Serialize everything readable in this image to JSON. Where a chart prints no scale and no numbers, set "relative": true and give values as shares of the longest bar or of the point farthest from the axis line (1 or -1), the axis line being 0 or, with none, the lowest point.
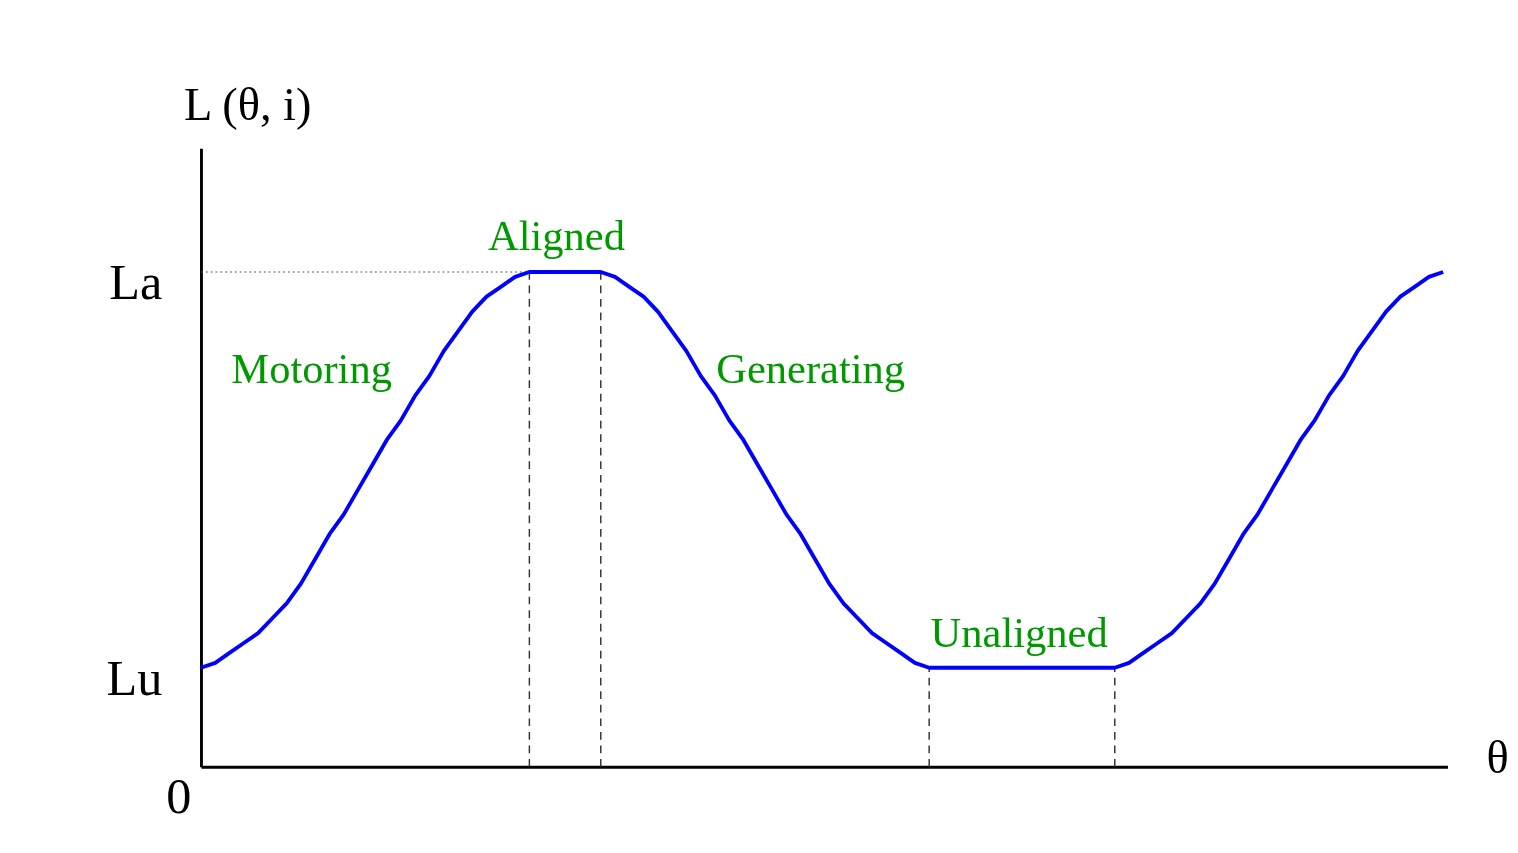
{
  "chart_data": {
    "type": "line",
    "relative": true,
    "xlabel": "θ",
    "ylabel": "L (θ, i)",
    "categories": [
      null,
      null,
      null,
      null,
      null,
      null,
      null,
      null,
      null,
      null,
      null,
      null,
      null,
      null,
      null,
      null,
      null,
      null,
      null,
      null,
      null,
      null,
      null,
      null,
      null,
      null,
      null,
      null,
      null,
      null,
      null,
      null,
      null,
      null,
      null,
      null,
      null,
      null,
      null,
      null,
      null,
      null,
      null,
      null,
      null,
      null,
      null,
      null,
      null,
      null,
      null,
      null,
      null,
      null,
      null,
      null,
      null,
      null,
      null,
      null,
      null,
      null,
      null,
      null,
      null,
      null,
      null,
      null,
      null,
      null,
      null,
      null,
      null,
      null,
      null,
      null,
      null,
      null,
      null,
      null,
      null,
      null,
      null,
      null,
      null,
      null,
      null,
      null
    ],
    "series": [
      {
        "color": "#0000ff",
        "values": [
          0.2,
          0.21,
          0.23,
          0.25,
          0.27,
          0.3,
          0.33,
          0.37,
          0.42,
          0.47,
          0.51,
          0.56,
          0.61,
          0.66,
          0.7,
          0.75,
          0.79,
          0.84,
          0.88,
          0.92,
          0.95,
          0.97,
          0.99,
          1,
          1,
          1,
          1,
          1,
          1,
          0.99,
          0.97,
          0.95,
          0.92,
          0.88,
          0.84,
          0.79,
          0.75,
          0.7,
          0.66,
          0.61,
          0.56,
          0.51,
          0.47,
          0.42,
          0.37,
          0.33,
          0.3,
          0.27,
          0.25,
          0.23,
          0.21,
          0.2,
          0.2,
          0.2,
          0.2,
          0.2,
          0.2,
          0.2,
          0.2,
          0.2,
          0.2,
          0.2,
          0.2,
          0.2,
          0.2,
          0.21,
          0.23,
          0.25,
          0.27,
          0.3,
          0.33,
          0.37,
          0.42,
          0.47,
          0.51,
          0.56,
          0.61,
          0.66,
          0.7,
          0.75,
          0.79,
          0.84,
          0.88,
          0.92,
          0.95,
          0.97,
          0.99,
          1
        ]
      }
    ],
    "ref_lines": [
      {
        "axis": "y",
        "value": 1,
        "label": "La",
        "line_style": "dotted",
        "color": "#555555"
      }
    ],
    "annotations": [
      "Lu",
      "0",
      "Motoring",
      "Aligned",
      "Generating",
      "Unaligned"
    ],
    "grid": false,
    "tick_labels": false,
    "line_style": "solid",
    "marker": "none"
  }
}
